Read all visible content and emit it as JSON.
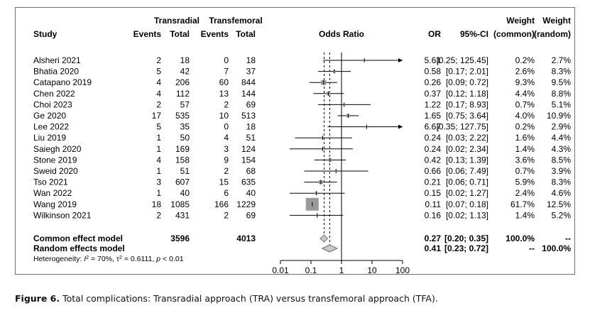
{
  "chart_data": {
    "type": "forest",
    "x_axis": {
      "scale": "log",
      "ticks": [
        0.01,
        0.1,
        1,
        10,
        100
      ],
      "tick_labels": [
        "0.01",
        "0.1",
        "1",
        "10",
        "100"
      ],
      "xlim": [
        0.01,
        100
      ]
    },
    "column_headers": {
      "group_a": "Transradial",
      "group_b": "Transfemoral",
      "study": "Study",
      "events": "Events",
      "total": "Total",
      "odds_ratio": "Odds Ratio",
      "or": "OR",
      "ci": "95%-CI",
      "weight": "Weight",
      "weight_common": "(common)",
      "weight_random": "(random)"
    },
    "studies": [
      {
        "study": "Alsheri 2021",
        "e1": "2",
        "n1": "18",
        "e2": "0",
        "n2": "18",
        "or": 5.61,
        "lo": 0.25,
        "hi": 125.45,
        "or_text": "5.61",
        "ci_text": "[0.25; 125.45]",
        "w_common": "0.2%",
        "w_random": "2.7%"
      },
      {
        "study": "Bhatia 2020",
        "e1": "5",
        "n1": "42",
        "e2": "7",
        "n2": "37",
        "or": 0.58,
        "lo": 0.17,
        "hi": 2.01,
        "or_text": "0.58",
        "ci_text": "[0.17;   2.01]",
        "w_common": "2.6%",
        "w_random": "8.3%"
      },
      {
        "study": "Catapano 2019",
        "e1": "4",
        "n1": "206",
        "e2": "60",
        "n2": "844",
        "or": 0.26,
        "lo": 0.09,
        "hi": 0.72,
        "or_text": "0.26",
        "ci_text": "[0.09;   0.72]",
        "w_common": "9.3%",
        "w_random": "9.5%"
      },
      {
        "study": "Chen 2022",
        "e1": "4",
        "n1": "112",
        "e2": "13",
        "n2": "144",
        "or": 0.37,
        "lo": 0.12,
        "hi": 1.18,
        "or_text": "0.37",
        "ci_text": "[0.12;   1.18]",
        "w_common": "4.4%",
        "w_random": "8.8%"
      },
      {
        "study": "Choi 2023",
        "e1": "2",
        "n1": "57",
        "e2": "2",
        "n2": "69",
        "or": 1.22,
        "lo": 0.17,
        "hi": 8.93,
        "or_text": "1.22",
        "ci_text": "[0.17;   8.93]",
        "w_common": "0.7%",
        "w_random": "5.1%"
      },
      {
        "study": "Ge 2020",
        "e1": "17",
        "n1": "535",
        "e2": "10",
        "n2": "513",
        "or": 1.65,
        "lo": 0.75,
        "hi": 3.64,
        "or_text": "1.65",
        "ci_text": "[0.75;   3.64]",
        "w_common": "4.0%",
        "w_random": "10.9%"
      },
      {
        "study": "Lee 2022",
        "e1": "5",
        "n1": "35",
        "e2": "0",
        "n2": "18",
        "or": 6.67,
        "lo": 0.35,
        "hi": 127.75,
        "or_text": "6.67",
        "ci_text": "[0.35; 127.75]",
        "w_common": "0.2%",
        "w_random": "2.9%"
      },
      {
        "study": "Liu 2019",
        "e1": "1",
        "n1": "50",
        "e2": "4",
        "n2": "51",
        "or": 0.24,
        "lo": 0.03,
        "hi": 2.22,
        "or_text": "0.24",
        "ci_text": "[0.03;   2.22]",
        "w_common": "1.6%",
        "w_random": "4.4%"
      },
      {
        "study": "Saiegh 2020",
        "e1": "1",
        "n1": "169",
        "e2": "3",
        "n2": "124",
        "or": 0.24,
        "lo": 0.02,
        "hi": 2.34,
        "or_text": "0.24",
        "ci_text": "[0.02;   2.34]",
        "w_common": "1.4%",
        "w_random": "4.3%"
      },
      {
        "study": "Stone 2019",
        "e1": "4",
        "n1": "158",
        "e2": "9",
        "n2": "154",
        "or": 0.42,
        "lo": 0.13,
        "hi": 1.39,
        "or_text": "0.42",
        "ci_text": "[0.13;   1.39]",
        "w_common": "3.6%",
        "w_random": "8.5%"
      },
      {
        "study": "Sweid 2020",
        "e1": "1",
        "n1": "51",
        "e2": "2",
        "n2": "68",
        "or": 0.66,
        "lo": 0.06,
        "hi": 7.49,
        "or_text": "0.66",
        "ci_text": "[0.06;   7.49]",
        "w_common": "0.7%",
        "w_random": "3.9%"
      },
      {
        "study": "Tso 2021",
        "e1": "3",
        "n1": "607",
        "e2": "15",
        "n2": "635",
        "or": 0.21,
        "lo": 0.06,
        "hi": 0.71,
        "or_text": "0.21",
        "ci_text": "[0.06;   0.71]",
        "w_common": "5.9%",
        "w_random": "8.3%"
      },
      {
        "study": "Wan 2022",
        "e1": "1",
        "n1": "40",
        "e2": "6",
        "n2": "40",
        "or": 0.15,
        "lo": 0.02,
        "hi": 1.27,
        "or_text": "0.15",
        "ci_text": "[0.02;   1.27]",
        "w_common": "2.4%",
        "w_random": "4.6%"
      },
      {
        "study": "Wang 2019",
        "e1": "18",
        "n1": "1085",
        "e2": "166",
        "n2": "1229",
        "or": 0.11,
        "lo": 0.07,
        "hi": 0.18,
        "or_text": "0.11",
        "ci_text": "[0.07;   0.18]",
        "w_common": "61.7%",
        "w_random": "12.5%"
      },
      {
        "study": "Wilkinson 2021",
        "e1": "2",
        "n1": "431",
        "e2": "2",
        "n2": "69",
        "or": 0.16,
        "lo": 0.02,
        "hi": 1.13,
        "or_text": "0.16",
        "ci_text": "[0.02;   1.13]",
        "w_common": "1.4%",
        "w_random": "5.2%"
      }
    ],
    "summary": [
      {
        "label": "Common effect model",
        "n1": "3596",
        "n2": "4013",
        "or": 0.27,
        "lo": 0.2,
        "hi": 0.35,
        "or_text": "0.27",
        "ci_text": "[0.20;   0.35]",
        "w_common": "100.0%",
        "w_random": "--"
      },
      {
        "label": "Random effects model",
        "n1": "",
        "n2": "",
        "or": 0.41,
        "lo": 0.23,
        "hi": 0.72,
        "or_text": "0.41",
        "ci_text": "[0.23;   0.72]",
        "w_common": "--",
        "w_random": "100.0%"
      }
    ],
    "heterogeneity": {
      "prefix": "Heterogeneity: ",
      "i2_symbol": "I",
      "i2_value": " = 70%, ",
      "tau_symbol": "τ",
      "tau_value": " = 0.6111, ",
      "p_symbol": "p",
      "p_value": " < 0.01"
    }
  },
  "caption": {
    "label": "Figure 6.",
    "text": " Total complications: Transradial approach (TRA) versus transfemoral approach (TFA)."
  },
  "colors": {
    "box": "#9a9a9a",
    "diamond": "#c8c8c8",
    "line": "#000000",
    "frame": "#6f6f6f"
  }
}
